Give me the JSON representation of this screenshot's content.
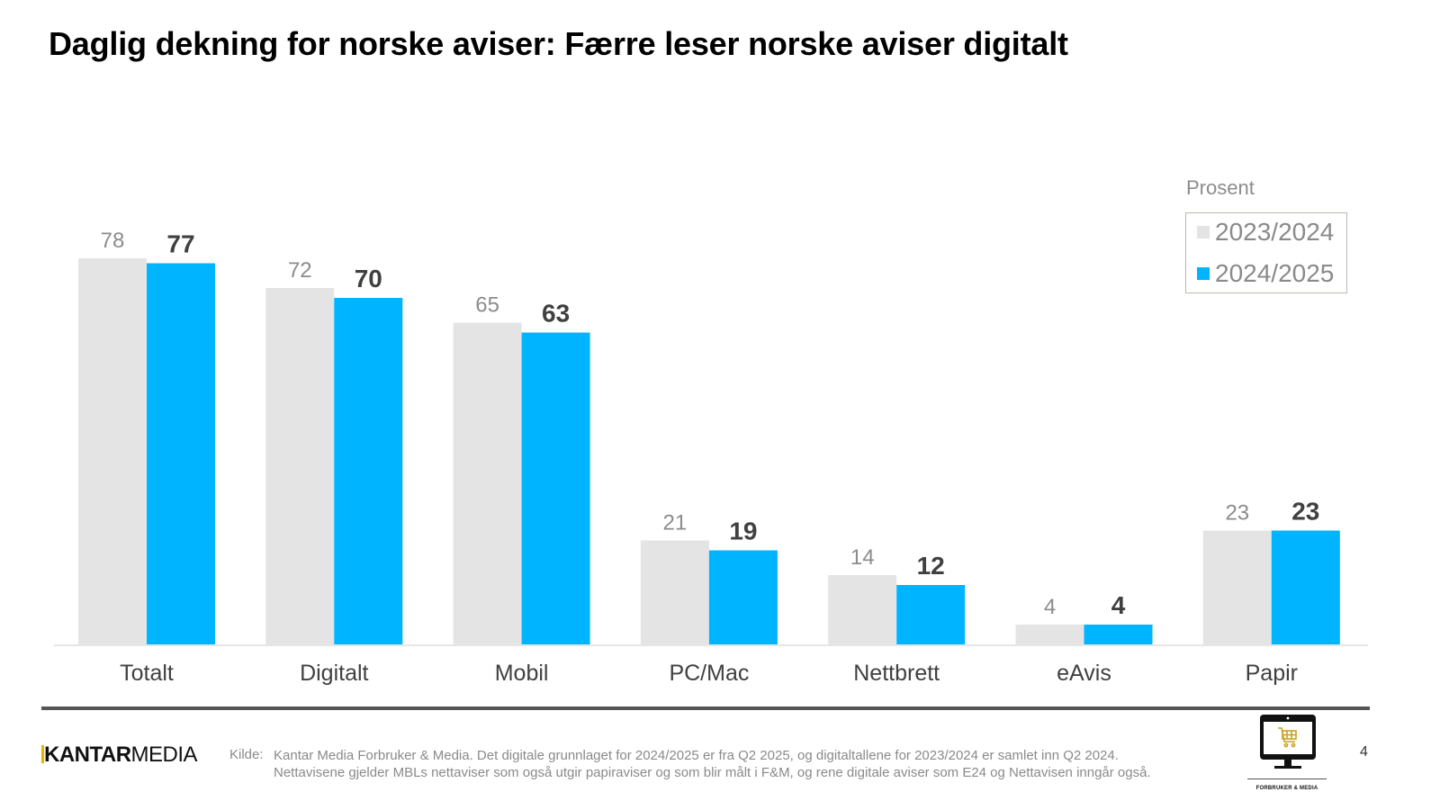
{
  "title": "Daglig dekning for norske aviser: Færre leser norske aviser digitalt",
  "legend": {
    "caption": "Prosent",
    "items": [
      {
        "label": "2023/2024",
        "color": "#e4e4e4"
      },
      {
        "label": "2024/2025",
        "color": "#00b4ff"
      }
    ]
  },
  "chart_data": {
    "type": "bar",
    "title": "Daglig dekning for norske aviser: Færre leser norske aviser digitalt",
    "xlabel": "",
    "ylabel": "Prosent",
    "ylim": [
      0,
      100
    ],
    "grid": false,
    "legend_position": "top-right",
    "categories": [
      "Totalt",
      "Digitalt",
      "Mobil",
      "PC/Mac",
      "Nettbrett",
      "eAvis",
      "Papir"
    ],
    "series": [
      {
        "name": "2023/2024",
        "color": "#e4e4e4",
        "label_color": "#8c8c8c",
        "values": [
          78,
          72,
          65,
          21,
          14,
          4,
          23
        ]
      },
      {
        "name": "2024/2025",
        "color": "#00b4ff",
        "label_color": "#404040",
        "values": [
          77,
          70,
          63,
          19,
          12,
          4,
          23
        ]
      }
    ]
  },
  "footer": {
    "brand_bold": "KANTAR",
    "brand_light": "MEDIA",
    "source_label": "Kilde:",
    "source_lines": [
      "Kantar Media Forbruker & Media. Det digitale grunnlaget for 2024/2025 er fra Q2 2025, og digitaltallene for 2023/2024 er samlet inn Q2 2024.",
      "Nettavisene gjelder MBLs nettaviser som også utgir papiraviser og som blir målt i F&M, og rene digitale aviser som E24 og Nettavisen inngår også."
    ],
    "page_number": "4",
    "product_logo_caption": "FORBRUKER & MEDIA"
  }
}
